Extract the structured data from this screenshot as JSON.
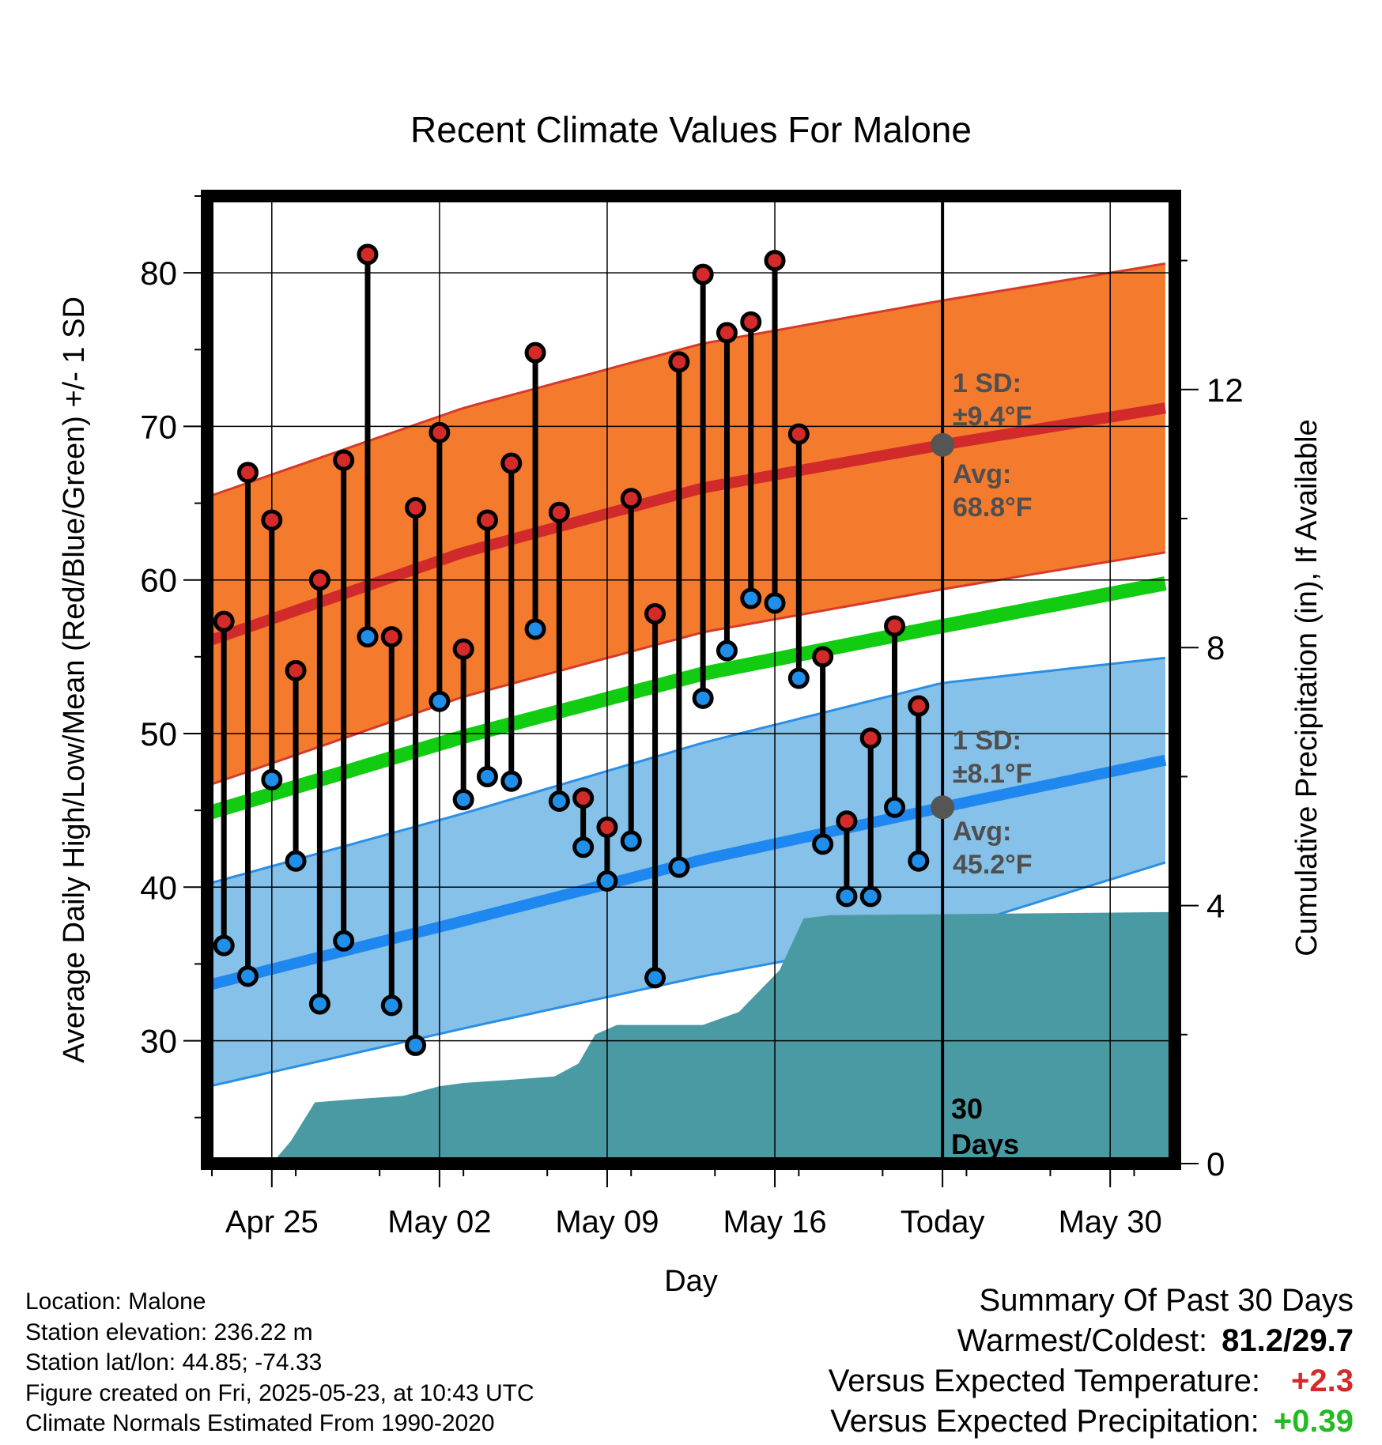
{
  "title": "Recent Climate Values For Malone",
  "colors": {
    "high_dot": "#d42a2a",
    "low_dot": "#1f8fea",
    "high_band": "#f47a2e",
    "high_band_edge": "#d63a2a",
    "high_mean_line": "#d12a2a",
    "low_band": "#85c1e8",
    "low_band_edge": "#2b8fe6",
    "low_mean_line": "#1e88f0",
    "mean_line": "#11cc11",
    "precip_area": "#4a9aa3",
    "annotation": "#4f4f4f",
    "positive_temp": "#d42a2a",
    "positive_precip": "#22bb22"
  },
  "chart_data": {
    "type": "range-dot",
    "title": "Recent Climate Values For Malone",
    "xlabel": "Day",
    "ylabel": "Average Daily High/Low/Mean (Red/Blue/Green) +/- 1 SD",
    "y2label": "Cumulative Precipitation (in), If Available",
    "x_ticks": [
      "Apr 25",
      "May 02",
      "May 09",
      "May 16",
      "Today",
      "May 30"
    ],
    "x_tick_days": [
      2,
      9,
      16,
      23,
      30,
      37
    ],
    "x_range_days": [
      -0.7,
      39.7
    ],
    "ylim": [
      22,
      85
    ],
    "y_ticks": [
      30,
      40,
      50,
      60,
      70,
      80
    ],
    "y2lim": [
      0,
      15
    ],
    "y2_ticks": [
      0,
      4,
      8,
      12
    ],
    "grid": true,
    "today_day": 30,
    "days": [
      0,
      1,
      2,
      3,
      4,
      5,
      6,
      7,
      8,
      9,
      10,
      11,
      12,
      13,
      14,
      15,
      16,
      17,
      18,
      19,
      20,
      21,
      22,
      23,
      24,
      25,
      26,
      27,
      28,
      29
    ],
    "highs": [
      57.3,
      67.0,
      63.9,
      54.1,
      60.0,
      67.8,
      81.2,
      56.3,
      64.7,
      69.6,
      55.5,
      63.9,
      67.6,
      74.8,
      64.4,
      45.8,
      43.9,
      65.3,
      57.8,
      74.2,
      79.9,
      76.1,
      76.8,
      80.8,
      69.5,
      55.0,
      44.3,
      49.7,
      57.0,
      51.8
    ],
    "lows": [
      36.2,
      34.2,
      47.0,
      41.7,
      32.4,
      36.5,
      56.3,
      32.3,
      29.7,
      52.1,
      45.7,
      47.2,
      46.9,
      56.8,
      45.6,
      42.6,
      40.4,
      43.0,
      34.1,
      41.3,
      52.3,
      55.4,
      58.8,
      58.5,
      53.6,
      42.8,
      39.4,
      39.4,
      45.2,
      41.7
    ],
    "normal_days": [
      -0.7,
      10,
      20,
      30,
      39.7
    ],
    "normal_high": [
      56.0,
      61.8,
      66.0,
      68.8,
      71.3
    ],
    "normal_high_sd": [
      9.4,
      9.4,
      9.4,
      9.4,
      9.4
    ],
    "normal_mean": [
      44.8,
      49.8,
      53.9,
      57.0,
      59.9
    ],
    "normal_low": [
      33.6,
      37.8,
      41.8,
      45.2,
      48.4
    ],
    "normal_low_sd": [
      6.6,
      7.0,
      7.6,
      8.1,
      6.6
    ],
    "precip_days": [
      2,
      2.8,
      3.8,
      5.5,
      7.5,
      9,
      10,
      12,
      13.8,
      14.8,
      15.5,
      16.4,
      20,
      21.5,
      23.2,
      24.2,
      25.3,
      39.7
    ],
    "precip_cum": [
      0.0,
      0.35,
      0.95,
      1.0,
      1.05,
      1.2,
      1.25,
      1.3,
      1.35,
      1.55,
      2.0,
      2.15,
      2.15,
      2.35,
      3.0,
      3.8,
      3.85,
      3.9
    ],
    "annotations": {
      "high_sd": "1 SD:",
      "high_sd_value": "±9.4°F",
      "high_avg": "Avg:",
      "high_avg_value": "68.8°F",
      "low_sd": "1 SD:",
      "low_sd_value": "±8.1°F",
      "low_avg": "Avg:",
      "low_avg_value": "45.2°F",
      "window_days": "30",
      "window_label": "Days"
    }
  },
  "footer": {
    "location": "Location: Malone",
    "elevation": "Station elevation: 236.22 m",
    "latlon": "Station lat/lon: 44.85; -74.33",
    "created": "Figure created on Fri, 2025-05-23, at 10:43 UTC",
    "normals": "Climate Normals Estimated From 1990-2020"
  },
  "summary": {
    "title": "Summary Of Past 30 Days",
    "warmest_coldest_label": "Warmest/Coldest:",
    "warmest_coldest_value": "81.2/29.7",
    "temp_label": "Versus Expected Temperature:",
    "temp_value": "+2.3",
    "precip_label": "Versus Expected Precipitation:",
    "precip_value": "+0.39"
  }
}
